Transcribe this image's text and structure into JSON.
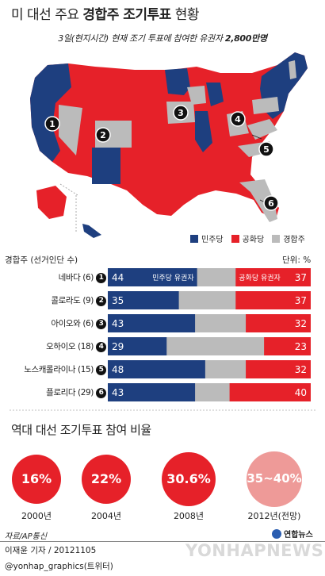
{
  "header": {
    "title_prefix": "미 대선 주요 ",
    "title_bold": "경합주 조기투표",
    "title_suffix": " 현황",
    "subtitle_prefix": "3일(현지시간) 현재 조기 투표에 참여한 유권자 ",
    "subtitle_bold": "2,800만명"
  },
  "colors": {
    "dem": "#1e3f7f",
    "rep": "#e62129",
    "swing": "#bbbbbb",
    "pale": "#ee9a98"
  },
  "map": {
    "markers": [
      "1",
      "2",
      "3",
      "4",
      "5",
      "6"
    ]
  },
  "legend": {
    "dem": "민주당",
    "rep": "공화당",
    "swing": "경합주"
  },
  "table": {
    "col_label": "경합주 (선거인단 수)",
    "unit": "단위: %",
    "dem_label": "민주당 유권자",
    "rep_label": "공화당 유권자"
  },
  "chart_data": [
    {
      "type": "bar",
      "categories": [
        "네바다 (6)",
        "콜로라도 (9)",
        "아이오와 (6)",
        "오하이오 (18)",
        "노스캐롤라이나 (15)",
        "플로리다 (29)"
      ],
      "markers": [
        "1",
        "2",
        "3",
        "4",
        "5",
        "6"
      ],
      "series": [
        {
          "name": "민주당 유권자",
          "values": [
            44,
            35,
            43,
            29,
            48,
            43
          ]
        },
        {
          "name": "공화당 유권자",
          "values": [
            37,
            37,
            32,
            23,
            32,
            40
          ]
        }
      ],
      "ylim": [
        0,
        100
      ]
    },
    {
      "type": "bar",
      "title": "역대 대선 조기투표 참여 비율",
      "categories": [
        "2000년",
        "2004년",
        "2008년",
        "2012년(전망)"
      ],
      "labels": [
        "16%",
        "22%",
        "30.6%",
        "35~40%"
      ],
      "values": [
        16,
        22,
        30.6,
        37.5
      ]
    }
  ],
  "footer": {
    "source": "자료/AP통신",
    "logo": "연합뉴스",
    "reporter": "이재윤 기자 / 20121105",
    "twitter": "@yonhap_graphics(트위터)",
    "watermark": "YONHAPNEWS"
  }
}
